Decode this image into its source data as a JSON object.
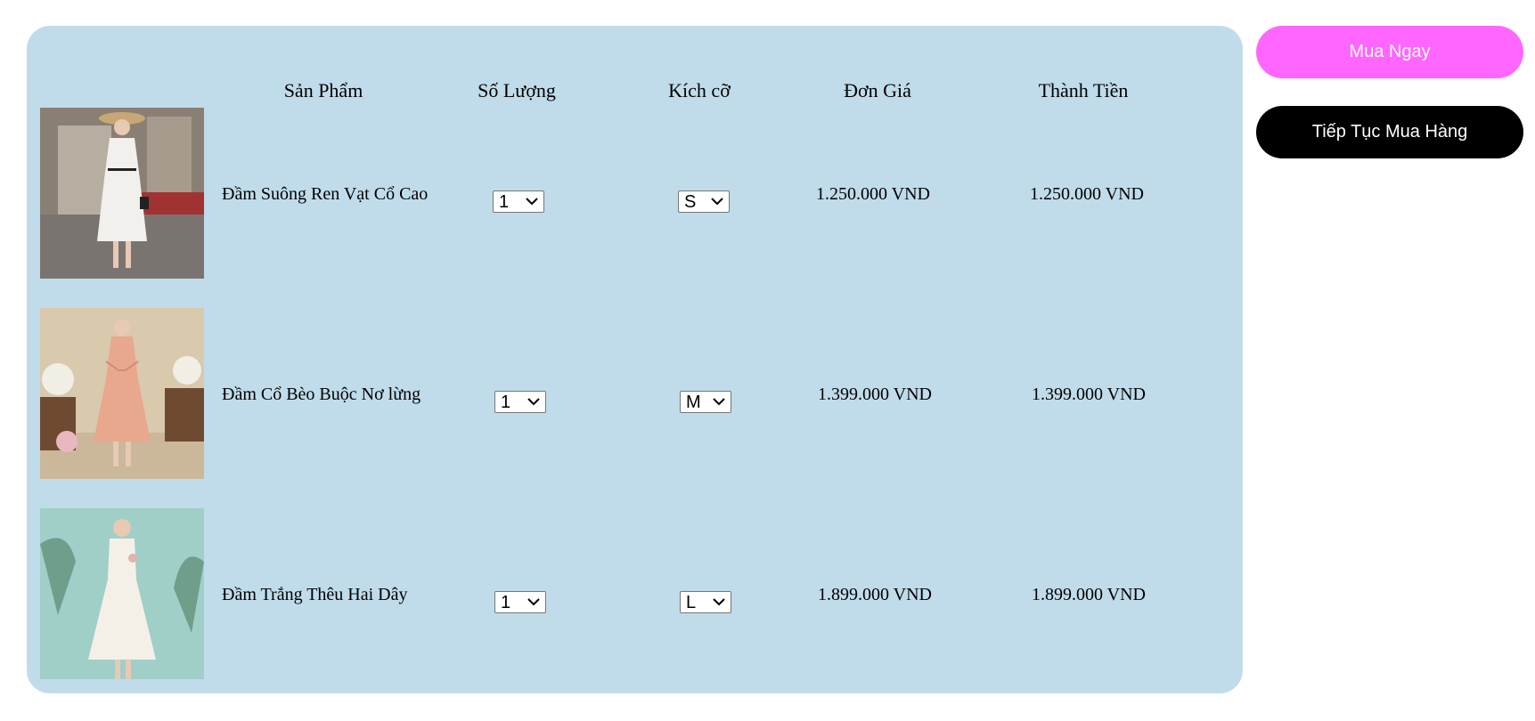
{
  "cart": {
    "headers": {
      "product": "Sản Phẩm",
      "quantity": "Số Lượng",
      "size": "Kích cỡ",
      "unit_price": "Đơn Giá",
      "total": "Thành Tiền"
    },
    "items": [
      {
        "image_icon": "woman-white-lace-dress-hat-photo",
        "name": "Đầm Suông Ren Vạt Cổ Cao",
        "quantity": "1",
        "size": "S",
        "unit_price": "1.250.000 VND",
        "total": "1.250.000 VND"
      },
      {
        "image_icon": "woman-floral-peach-dress-photo",
        "name": "Đầm Cổ Bèo Buộc Nơ lừng",
        "quantity": "1",
        "size": "M",
        "unit_price": "1.399.000 VND",
        "total": "1.399.000 VND"
      },
      {
        "image_icon": "woman-white-strap-dress-photo",
        "name": "Đầm Trắng Thêu Hai Dây",
        "quantity": "1",
        "size": "L",
        "unit_price": "1.899.000 VND",
        "total": "1.899.000 VND"
      }
    ]
  },
  "actions": {
    "buy_now": "Mua Ngay",
    "continue_shopping": "Tiếp Tục Mua Hàng"
  },
  "colors": {
    "panel": "#c0dcea",
    "buy_button": "#ff66ff",
    "continue_button": "#000000"
  }
}
